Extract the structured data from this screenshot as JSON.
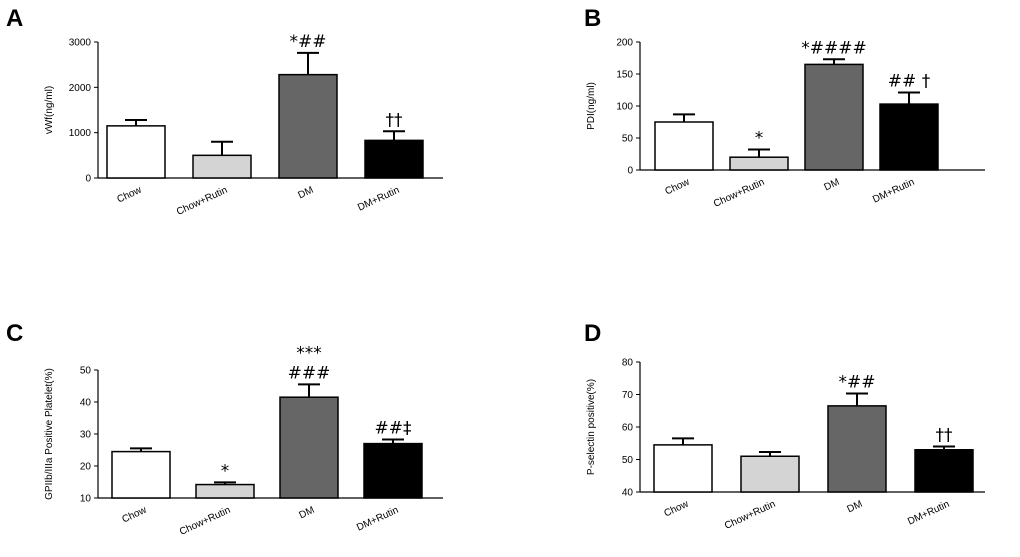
{
  "chart_data": [
    {
      "type": "bar",
      "panel": "A",
      "ylabel": "vWf(ng/ml)",
      "ylim": [
        0,
        3000
      ],
      "yticks": [
        0,
        1000,
        2000,
        3000
      ],
      "categories": [
        "Chow",
        "Chow+Rutin",
        "DM",
        "DM+Rutin"
      ],
      "values": [
        1150,
        500,
        2280,
        830
      ],
      "errors": [
        130,
        300,
        480,
        200
      ],
      "annotations": [
        "",
        "",
        "*##",
        "††"
      ],
      "colors": [
        "#ffffff",
        "#d4d4d4",
        "#666666",
        "#000000"
      ]
    },
    {
      "type": "bar",
      "panel": "B",
      "ylabel": "PDI(ng/ml)",
      "ylim": [
        0,
        200
      ],
      "yticks": [
        0,
        50,
        100,
        150,
        200
      ],
      "categories": [
        "Chow",
        "Chow+Rutin",
        "DM",
        "DM+Rutin"
      ],
      "values": [
        75,
        20,
        165,
        103
      ],
      "errors": [
        12,
        12,
        8,
        18
      ],
      "annotations": [
        "",
        "*",
        "*####",
        "## †"
      ],
      "colors": [
        "#ffffff",
        "#d4d4d4",
        "#666666",
        "#000000"
      ]
    },
    {
      "type": "bar",
      "panel": "C",
      "ylabel": "GPIIb/IIIa Positive Platelet(%)",
      "ylim": [
        10,
        50
      ],
      "yticks": [
        10,
        20,
        30,
        40,
        50
      ],
      "categories": [
        "Chow",
        "Chow+Rutin",
        "DM",
        "DM+Rutin"
      ],
      "values": [
        24.5,
        14.2,
        41.5,
        27
      ],
      "errors": [
        1,
        0.7,
        4,
        1.3
      ],
      "annotations": [
        "",
        "*",
        "***\n###",
        "##‡"
      ],
      "colors": [
        "#ffffff",
        "#d4d4d4",
        "#666666",
        "#000000"
      ]
    },
    {
      "type": "bar",
      "panel": "D",
      "ylabel": "P-selectin positive(%)",
      "ylim": [
        40,
        80
      ],
      "yticks": [
        40,
        50,
        60,
        70,
        80
      ],
      "categories": [
        "Chow",
        "Chow+Rutin",
        "DM",
        "DM+Rutin"
      ],
      "values": [
        54.5,
        51,
        66.5,
        53
      ],
      "errors": [
        2,
        1.3,
        3.8,
        1
      ],
      "annotations": [
        "",
        "",
        "*##",
        "††"
      ],
      "colors": [
        "#ffffff",
        "#d4d4d4",
        "#666666",
        "#000000"
      ]
    }
  ]
}
